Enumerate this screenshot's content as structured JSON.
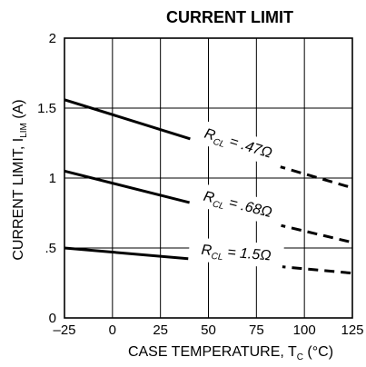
{
  "chart_data": {
    "type": "line",
    "title": "CURRENT LIMIT",
    "xlabel": {
      "main": "CASE TEMPERATURE, T",
      "sub": "C",
      "suffix": " (°C)"
    },
    "ylabel": {
      "main": "CURRENT LIMIT, I",
      "sub": "LIM",
      "suffix": " (A)"
    },
    "xlim": [
      -25,
      125
    ],
    "ylim": [
      0,
      2
    ],
    "xticks": [
      -25,
      0,
      25,
      50,
      75,
      100,
      125
    ],
    "xtick_labels": [
      "–25",
      "0",
      "25",
      "50",
      "75",
      "100",
      "125"
    ],
    "yticks": [
      0,
      0.5,
      1,
      1.5,
      2
    ],
    "ytick_labels": [
      "0",
      ".5",
      "1",
      "1.5",
      "2"
    ],
    "grid": true,
    "series": [
      {
        "name_main": "R",
        "name_sub": "CL",
        "name_value": " = .47Ω",
        "solid": [
          [
            -25,
            1.56
          ],
          [
            85,
            1.09
          ]
        ],
        "dashed": [
          [
            85,
            1.09
          ],
          [
            125,
            0.93
          ]
        ]
      },
      {
        "name_main": "R",
        "name_sub": "CL",
        "name_value": " = .68Ω",
        "solid": [
          [
            -25,
            1.05
          ],
          [
            85,
            0.67
          ]
        ],
        "dashed": [
          [
            85,
            0.67
          ],
          [
            125,
            0.54
          ]
        ]
      },
      {
        "name_main": "R",
        "name_sub": "CL",
        "name_value": " = 1.5Ω",
        "solid": [
          [
            -25,
            0.5
          ],
          [
            85,
            0.37
          ]
        ],
        "dashed": [
          [
            85,
            0.37
          ],
          [
            125,
            0.32
          ]
        ]
      }
    ]
  }
}
